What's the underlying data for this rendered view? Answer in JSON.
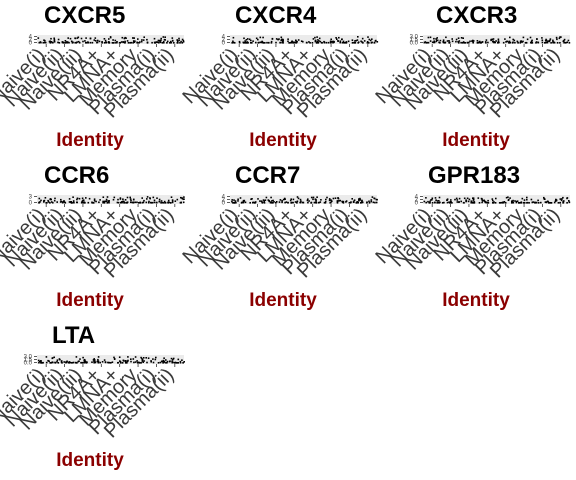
{
  "chart_data": [
    {
      "type": "scatter",
      "title": "CXCR5",
      "xlabel": "Identity",
      "categories": [
        "Naive(i)",
        "Naive(ii)",
        "Naive(iii)",
        "NR4A+",
        "LMNA+",
        "Memory",
        "Plasma(i)",
        "Plasma(ii)"
      ],
      "yticks": [
        "4",
        "2",
        "0"
      ],
      "ylim": [
        0,
        4
      ]
    },
    {
      "type": "scatter",
      "title": "CXCR4",
      "xlabel": "Identity",
      "categories": [
        "Naive(i)",
        "Naive(ii)",
        "Naive(iii)",
        "NR4A+",
        "LMNA+",
        "Memory",
        "Plasma(i)",
        "Plasma(ii)"
      ],
      "yticks": [
        "4",
        "2",
        "0"
      ],
      "ylim": [
        0,
        4
      ]
    },
    {
      "type": "scatter",
      "title": "CXCR3",
      "xlabel": "Identity",
      "categories": [
        "Naive(i)",
        "Naive(ii)",
        "Naive(iii)",
        "NR4A+",
        "LMNA+",
        "Memory",
        "Plasma(i)",
        "Plasma(ii)"
      ],
      "yticks": [
        "3.0",
        "1.5",
        "0.0"
      ],
      "ylim": [
        0,
        3
      ]
    },
    {
      "type": "scatter",
      "title": "CCR6",
      "xlabel": "Identity",
      "categories": [
        "Naive(i)",
        "Naive(ii)",
        "Naive(iii)",
        "NR4A+",
        "LMNA+",
        "Memory",
        "Plasma(i)",
        "Plasma(ii)"
      ],
      "yticks": [
        "3",
        "0"
      ],
      "ylim": [
        0,
        3
      ]
    },
    {
      "type": "scatter",
      "title": "CCR7",
      "xlabel": "Identity",
      "categories": [
        "Naive(i)",
        "Naive(ii)",
        "Naive(iii)",
        "NR4A+",
        "LMNA+",
        "Memory",
        "Plasma(i)",
        "Plasma(ii)"
      ],
      "yticks": [
        "4",
        "2",
        "0"
      ],
      "ylim": [
        0,
        4
      ]
    },
    {
      "type": "scatter",
      "title": "GPR183",
      "xlabel": "Identity",
      "categories": [
        "Naive(i)",
        "Naive(ii)",
        "Naive(iii)",
        "NR4A+",
        "LMNA+",
        "Memory",
        "Plasma(i)",
        "Plasma(ii)"
      ],
      "yticks": [
        "4",
        "2",
        "0"
      ],
      "ylim": [
        0,
        4
      ]
    },
    {
      "type": "scatter",
      "title": "LTA",
      "xlabel": "Identity",
      "categories": [
        "Naive(i)",
        "Naive(ii)",
        "Naive(iii)",
        "NR4A+",
        "LMNA+",
        "Memory",
        "Plasma(i)",
        "Plasma(ii)"
      ],
      "yticks": [
        "3.0",
        "1.5",
        "0.0"
      ],
      "ylim": [
        0,
        3
      ]
    }
  ],
  "colors": {
    "title": "#000000",
    "xlabel": "#8b0000",
    "tick": "#3a3a3a",
    "points": "#000000"
  }
}
